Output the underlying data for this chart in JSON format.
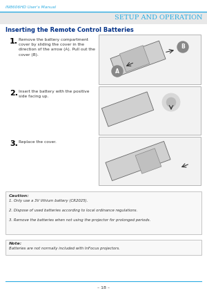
{
  "page_bg": "#ffffff",
  "header_text": "IN8606HD User's Manual",
  "header_color": "#29abe2",
  "header_line_color": "#29abe2",
  "section_bg": "#e8e8e8",
  "section_title": "Setup and Operation",
  "section_title_color": "#29abe2",
  "subsection_title": "Inserting the Remote Control Batteries",
  "subsection_color": "#003087",
  "step1_num": "1.",
  "step1_text": "Remove the battery compartment\ncover by sliding the cover in the\ndirection of the arrow (A). Pull out the\ncover (B).",
  "step2_num": "2.",
  "step2_text": "Insert the battery with the positive\nside facing up.",
  "step3_num": "3.",
  "step3_text": "Replace the cover.",
  "caution_title": "Caution:",
  "caution_lines": "1. Only use a 3V lithium battery (CR2025).\n\n2. Dispose of used batteries according to local ordinance regulations.\n\n3. Remove the batteries when not using the projector for prolonged periods.",
  "note_title": "Note:",
  "note_line": "Batteries are not normally included with InFocus projectors.",
  "footer_text": "– 18 –",
  "footer_line_color": "#29abe2",
  "text_color": "#333333",
  "step_num_color": "#000000",
  "box_border_color": "#bbbbbb",
  "image_box_color": "#f2f2f2",
  "img_border_color": "#aaaaaa"
}
